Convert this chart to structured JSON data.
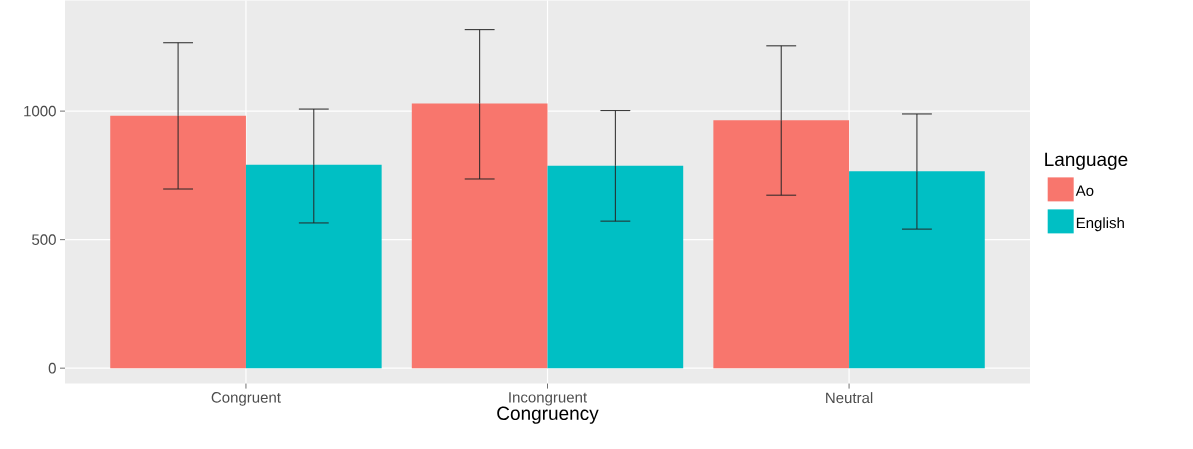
{
  "chart_data": {
    "type": "bar",
    "xlabel": "Congruency",
    "legend_title": "Language",
    "legend": "right",
    "categories": [
      "Congruent",
      "Incongruent",
      "Neutral"
    ],
    "series": [
      {
        "name": "Ao",
        "color": "#f8766d",
        "values": [
          982,
          1030,
          964
        ],
        "errors": [
          [
            697,
            1266
          ],
          [
            736,
            1317
          ],
          [
            673,
            1254
          ]
        ]
      },
      {
        "name": "English",
        "color": "#00bfc4",
        "values": [
          791,
          787,
          766
        ],
        "errors": [
          [
            565,
            1008
          ],
          [
            572,
            1002
          ],
          [
            541,
            989
          ]
        ]
      }
    ],
    "ylim": [
      -60,
      1430
    ],
    "yticks": [
      0,
      500,
      1000
    ],
    "grid": true
  }
}
